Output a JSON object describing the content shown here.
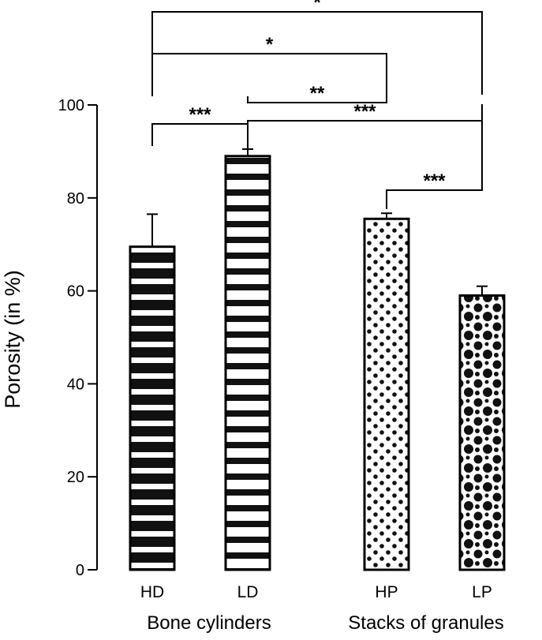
{
  "chart_data": {
    "type": "bar",
    "title": "",
    "ylabel": "Porosity (in %)",
    "xlabel": "",
    "ylim": [
      0,
      100
    ],
    "yticks": [
      0,
      20,
      40,
      60,
      80,
      100
    ],
    "grid": false,
    "categories": [
      "HD",
      "LD",
      "HP",
      "LP"
    ],
    "values": [
      69.5,
      89,
      75.5,
      59
    ],
    "errors": [
      7,
      1.5,
      1.2,
      2
    ],
    "patterns": [
      "black-horizontal-stripes",
      "white-horizontal-stripes",
      "small-black-dots",
      "large-black-dots"
    ],
    "groups": [
      {
        "label": "Bone cylinders",
        "categories": [
          "HD",
          "LD"
        ]
      },
      {
        "label": "Stacks of granules",
        "categories": [
          "HP",
          "LP"
        ]
      }
    ],
    "significance": [
      {
        "from": "HD",
        "to": "LD",
        "label": "***"
      },
      {
        "from": "LD",
        "to": "LP",
        "label": "***"
      },
      {
        "from": "HP",
        "to": "LP",
        "label": "***"
      },
      {
        "from": "LD",
        "to": "HP",
        "label": "**"
      },
      {
        "from": "HD",
        "to": "HP",
        "label": "*"
      },
      {
        "from": "HD",
        "to": "LP",
        "label": "*"
      }
    ]
  }
}
